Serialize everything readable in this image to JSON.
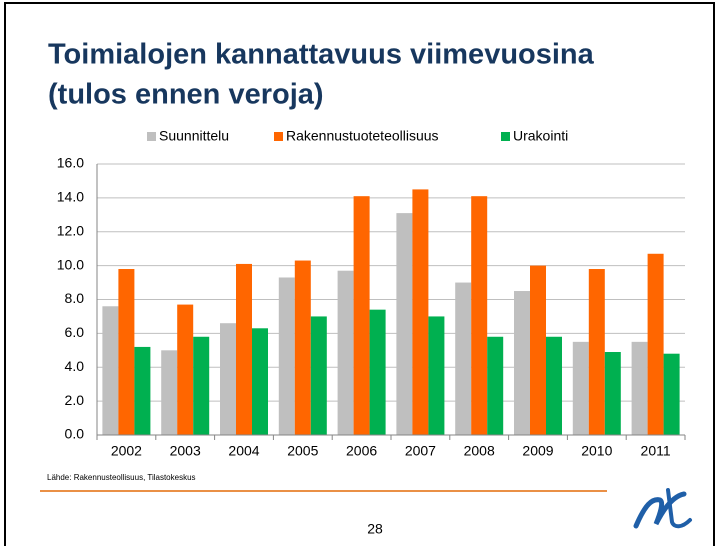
{
  "chart_data": {
    "type": "bar",
    "title": [
      "Toimialojen kannattavuus viimevuosina",
      "(tulos ennen veroja)"
    ],
    "categories": [
      "2002",
      "2003",
      "2004",
      "2005",
      "2006",
      "2007",
      "2008",
      "2009",
      "2010",
      "2011"
    ],
    "series": [
      {
        "name": "Suunnittelu",
        "color": "#bfbfbf",
        "values": [
          7.6,
          5.0,
          6.6,
          9.3,
          9.7,
          13.1,
          9.0,
          8.5,
          5.5,
          5.5
        ]
      },
      {
        "name": "Rakennustuoteteollisuus",
        "color": "#ff6600",
        "values": [
          9.8,
          7.7,
          10.1,
          10.3,
          14.1,
          14.5,
          14.1,
          10.0,
          9.8,
          10.7
        ]
      },
      {
        "name": "Urakointi",
        "color": "#00b050",
        "values": [
          5.2,
          5.8,
          6.3,
          7.0,
          7.4,
          7.0,
          5.8,
          5.8,
          4.9,
          4.8
        ]
      }
    ],
    "ylim": [
      0,
      16
    ],
    "yticks": [
      {
        "value": 0,
        "label": "0.0"
      },
      {
        "value": 2,
        "label": "2.0"
      },
      {
        "value": 4,
        "label": "4.0"
      },
      {
        "value": 6,
        "label": "6.0"
      },
      {
        "value": 8,
        "label": "8.0"
      },
      {
        "value": 10,
        "label": "10.0"
      },
      {
        "value": 12,
        "label": "12.0"
      },
      {
        "value": 14,
        "label": "14.0"
      },
      {
        "value": 16,
        "label": "16.0"
      }
    ],
    "grid": true,
    "legend": "top",
    "source": "Lähde: Rakennusteollisuus, Tilastokeskus"
  },
  "page_number": "28"
}
